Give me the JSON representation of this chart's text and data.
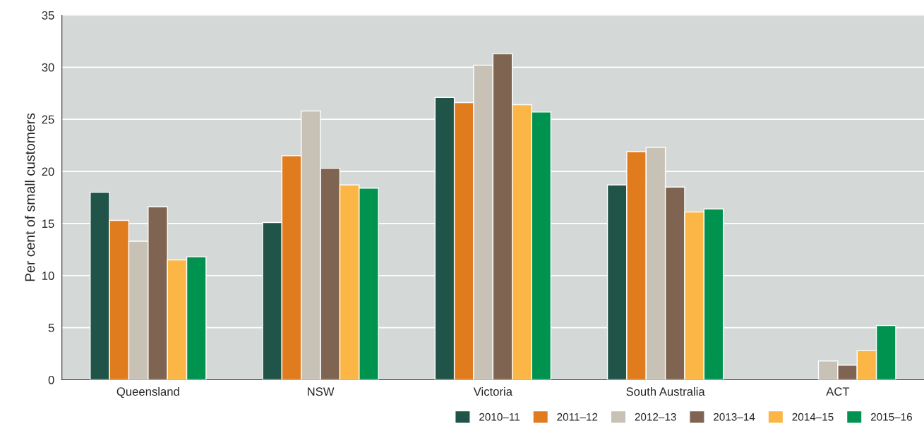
{
  "chart_data": {
    "type": "bar",
    "ylabel": "Per cent of small customers",
    "categories": [
      "Queensland",
      "NSW",
      "Victoria",
      "South Australia",
      "ACT"
    ],
    "series": [
      {
        "name": "2010–11",
        "color": "#215449",
        "values": [
          18.0,
          15.1,
          27.1,
          18.7,
          null
        ]
      },
      {
        "name": "2011–12",
        "color": "#e07b1e",
        "values": [
          15.3,
          21.5,
          26.6,
          21.9,
          null
        ]
      },
      {
        "name": "2012–13",
        "color": "#c8c1b6",
        "values": [
          13.3,
          25.8,
          30.2,
          22.3,
          1.8
        ]
      },
      {
        "name": "2013–14",
        "color": "#7f6451",
        "values": [
          16.6,
          20.3,
          31.3,
          18.5,
          1.4
        ]
      },
      {
        "name": "2014–15",
        "color": "#fbb646",
        "values": [
          11.5,
          18.7,
          26.4,
          16.1,
          2.8
        ]
      },
      {
        "name": "2015–16",
        "color": "#00924f",
        "values": [
          11.8,
          18.4,
          25.7,
          16.4,
          5.2
        ]
      }
    ],
    "ylim": [
      0,
      35
    ],
    "yticks": [
      0,
      5,
      10,
      15,
      20,
      25,
      30,
      35
    ],
    "grid": "y",
    "legend": "bottom right"
  }
}
